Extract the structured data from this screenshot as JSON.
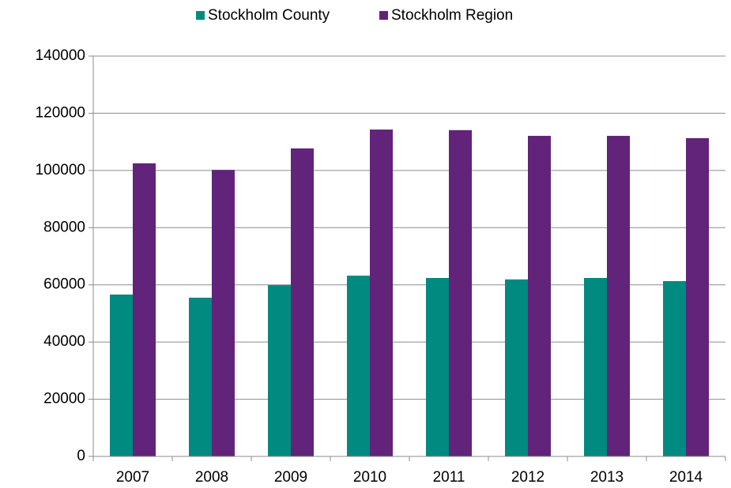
{
  "chart_data": {
    "type": "bar",
    "categories": [
      "2007",
      "2008",
      "2009",
      "2010",
      "2011",
      "2012",
      "2013",
      "2014"
    ],
    "series": [
      {
        "name": "Stockholm County",
        "color": "#008a80",
        "values": [
          56600,
          55500,
          59900,
          63200,
          62400,
          61900,
          62400,
          61300
        ]
      },
      {
        "name": "Stockholm Region",
        "color": "#62237a",
        "values": [
          102500,
          100200,
          107700,
          114300,
          114100,
          112100,
          112100,
          111300
        ]
      }
    ],
    "ylim": [
      0,
      140000
    ],
    "yticks": [
      0,
      20000,
      40000,
      60000,
      80000,
      100000,
      120000,
      140000
    ],
    "grid": true,
    "legend": "top"
  }
}
